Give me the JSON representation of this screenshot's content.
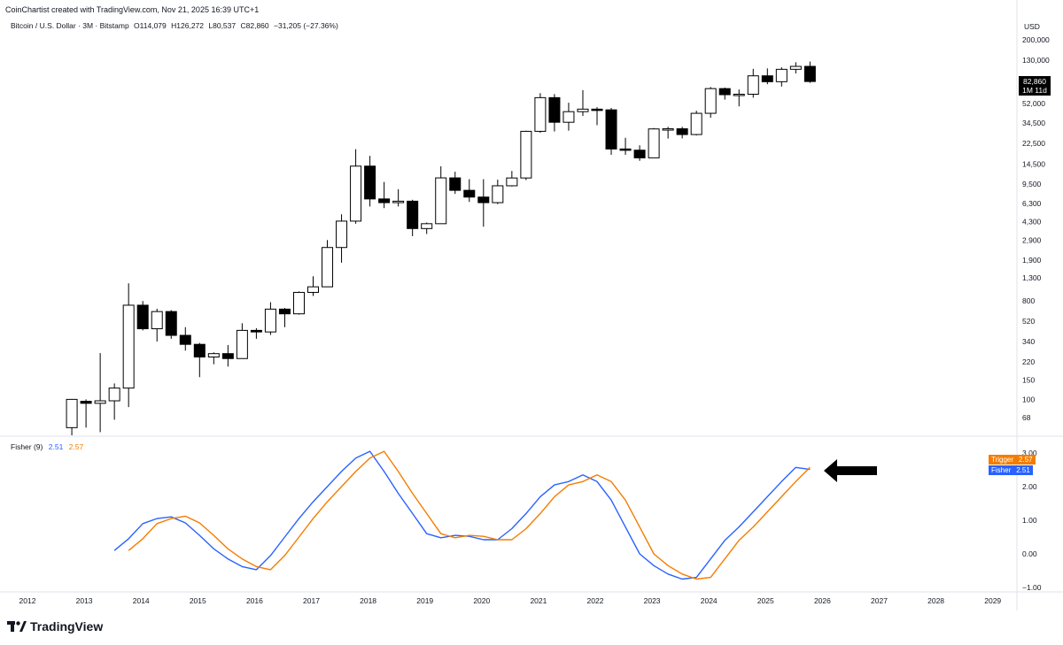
{
  "watermark": "CoinChartist created with TradingView.com, Nov 21, 2025 16:39 UTC+1",
  "legend": {
    "symbol": "Bitcoin / U.S. Dollar · 3M · Bitstamp",
    "open": "O114,079",
    "high": "H126,272",
    "low": "L80,537",
    "close": "C82,860",
    "change": "−31,205 (−27.36%)"
  },
  "currency": "USD",
  "price_tag": {
    "price": "82,860",
    "countdown": "1M 11d"
  },
  "fisher_legend": {
    "name": "Fisher (9)",
    "fisher_value": "2.51",
    "trigger_value": "2.57"
  },
  "indicator_tags": {
    "trigger_label": "Trigger",
    "trigger_value": "2.57",
    "fisher_label": "Fisher",
    "fisher_value": "2.51"
  },
  "brand": "TradingView",
  "colors": {
    "fisher": "#2962ff",
    "trigger": "#f57c00",
    "bearish": "#000000",
    "bullish": "#ffffff"
  },
  "chart_data": [
    {
      "type": "candlestick",
      "scale": "log",
      "price_axis_ticks": [
        "200,000",
        "130,000",
        "52,000",
        "34,500",
        "22,500",
        "14,500",
        "9,500",
        "6,300",
        "4,300",
        "2,900",
        "1,900",
        "1,300",
        "800",
        "520",
        "340",
        "220",
        "150",
        "100",
        "68"
      ],
      "price_axis_values": [
        200000,
        130000,
        52000,
        34500,
        22500,
        14500,
        9500,
        6300,
        4300,
        2900,
        1900,
        1300,
        800,
        520,
        340,
        220,
        150,
        100,
        68
      ],
      "time_axis_ticks": [
        "2012",
        "2013",
        "2014",
        "2015",
        "2016",
        "2017",
        "2018",
        "2019",
        "2020",
        "2021",
        "2022",
        "2023",
        "2024",
        "2025",
        "2026",
        "2027",
        "2028",
        "2029"
      ],
      "candles": [
        {
          "t": 2012.75,
          "o": 55,
          "h": 100,
          "l": 40,
          "c": 100
        },
        {
          "t": 2013.0,
          "o": 96,
          "h": 100,
          "l": 55,
          "c": 92
        },
        {
          "t": 2013.25,
          "o": 92,
          "h": 266,
          "l": 50,
          "c": 97
        },
        {
          "t": 2013.5,
          "o": 97,
          "h": 140,
          "l": 65,
          "c": 127
        },
        {
          "t": 2013.75,
          "o": 127,
          "h": 1163,
          "l": 85,
          "c": 732
        },
        {
          "t": 2014.0,
          "o": 732,
          "h": 800,
          "l": 430,
          "c": 445
        },
        {
          "t": 2014.25,
          "o": 445,
          "h": 680,
          "l": 340,
          "c": 640
        },
        {
          "t": 2014.5,
          "o": 640,
          "h": 660,
          "l": 360,
          "c": 387
        },
        {
          "t": 2014.75,
          "o": 387,
          "h": 460,
          "l": 280,
          "c": 320
        },
        {
          "t": 2015.0,
          "o": 320,
          "h": 330,
          "l": 160,
          "c": 245
        },
        {
          "t": 2015.25,
          "o": 245,
          "h": 270,
          "l": 210,
          "c": 263
        },
        {
          "t": 2015.5,
          "o": 263,
          "h": 315,
          "l": 200,
          "c": 237
        },
        {
          "t": 2015.75,
          "o": 237,
          "h": 500,
          "l": 237,
          "c": 430
        },
        {
          "t": 2016.0,
          "o": 430,
          "h": 450,
          "l": 360,
          "c": 416
        },
        {
          "t": 2016.25,
          "o": 416,
          "h": 780,
          "l": 390,
          "c": 674
        },
        {
          "t": 2016.5,
          "o": 674,
          "h": 690,
          "l": 460,
          "c": 610
        },
        {
          "t": 2016.75,
          "o": 610,
          "h": 980,
          "l": 600,
          "c": 960
        },
        {
          "t": 2017.0,
          "o": 960,
          "h": 1350,
          "l": 890,
          "c": 1080
        },
        {
          "t": 2017.25,
          "o": 1080,
          "h": 2900,
          "l": 1080,
          "c": 2480
        },
        {
          "t": 2017.5,
          "o": 2480,
          "h": 5000,
          "l": 1800,
          "c": 4330
        },
        {
          "t": 2017.75,
          "o": 4330,
          "h": 19800,
          "l": 4100,
          "c": 13850
        },
        {
          "t": 2018.0,
          "o": 13850,
          "h": 17200,
          "l": 5900,
          "c": 6920
        },
        {
          "t": 2018.25,
          "o": 6920,
          "h": 9900,
          "l": 5700,
          "c": 6400
        },
        {
          "t": 2018.5,
          "o": 6400,
          "h": 8500,
          "l": 5900,
          "c": 6600
        },
        {
          "t": 2018.75,
          "o": 6600,
          "h": 6800,
          "l": 3150,
          "c": 3700
        },
        {
          "t": 2019.0,
          "o": 3700,
          "h": 4200,
          "l": 3300,
          "c": 4100
        },
        {
          "t": 2019.25,
          "o": 4100,
          "h": 13800,
          "l": 4100,
          "c": 10800
        },
        {
          "t": 2019.5,
          "o": 10800,
          "h": 12300,
          "l": 7700,
          "c": 8300
        },
        {
          "t": 2019.75,
          "o": 8300,
          "h": 10500,
          "l": 6500,
          "c": 7200
        },
        {
          "t": 2020.0,
          "o": 7200,
          "h": 10500,
          "l": 3850,
          "c": 6400
        },
        {
          "t": 2020.25,
          "o": 6400,
          "h": 10400,
          "l": 6200,
          "c": 9140
        },
        {
          "t": 2020.5,
          "o": 9140,
          "h": 12500,
          "l": 9000,
          "c": 10780
        },
        {
          "t": 2020.75,
          "o": 10780,
          "h": 29300,
          "l": 10300,
          "c": 28900
        },
        {
          "t": 2021.0,
          "o": 28900,
          "h": 64800,
          "l": 28000,
          "c": 58900
        },
        {
          "t": 2021.25,
          "o": 58900,
          "h": 63500,
          "l": 28800,
          "c": 35000
        },
        {
          "t": 2021.5,
          "o": 35000,
          "h": 52900,
          "l": 29300,
          "c": 43800
        },
        {
          "t": 2021.75,
          "o": 43800,
          "h": 69000,
          "l": 40000,
          "c": 46200
        },
        {
          "t": 2022.0,
          "o": 46200,
          "h": 48200,
          "l": 32900,
          "c": 45500
        },
        {
          "t": 2022.25,
          "o": 45500,
          "h": 47400,
          "l": 17600,
          "c": 19900
        },
        {
          "t": 2022.5,
          "o": 19900,
          "h": 25200,
          "l": 17600,
          "c": 19400
        },
        {
          "t": 2022.75,
          "o": 19400,
          "h": 21500,
          "l": 15500,
          "c": 16500
        },
        {
          "t": 2023.0,
          "o": 16500,
          "h": 31000,
          "l": 16500,
          "c": 30400
        },
        {
          "t": 2023.25,
          "o": 30400,
          "h": 31800,
          "l": 24800,
          "c": 30500
        },
        {
          "t": 2023.5,
          "o": 30500,
          "h": 31800,
          "l": 24900,
          "c": 27000
        },
        {
          "t": 2023.75,
          "o": 27000,
          "h": 44700,
          "l": 26500,
          "c": 42300
        },
        {
          "t": 2024.0,
          "o": 42300,
          "h": 73800,
          "l": 38500,
          "c": 71300
        },
        {
          "t": 2024.25,
          "o": 71300,
          "h": 72800,
          "l": 56500,
          "c": 62700
        },
        {
          "t": 2024.5,
          "o": 62700,
          "h": 70000,
          "l": 49000,
          "c": 63300
        },
        {
          "t": 2024.75,
          "o": 63300,
          "h": 108300,
          "l": 58900,
          "c": 93400
        },
        {
          "t": 2025.0,
          "o": 93400,
          "h": 109300,
          "l": 78200,
          "c": 82500
        },
        {
          "t": 2025.25,
          "o": 82500,
          "h": 111900,
          "l": 74500,
          "c": 107200
        },
        {
          "t": 2025.5,
          "o": 107200,
          "h": 124500,
          "l": 98200,
          "c": 114079
        },
        {
          "t": 2025.75,
          "o": 114079,
          "h": 126272,
          "l": 80537,
          "c": 82860
        }
      ]
    },
    {
      "type": "line",
      "title": "Fisher (9)",
      "ylim": [
        -1.0,
        3.0
      ],
      "y_axis_ticks": [
        "3.00",
        "2.00",
        "1.00",
        "0.00",
        "−1.00"
      ],
      "y_axis_values": [
        3.0,
        2.0,
        1.0,
        0.0,
        -1.0
      ],
      "series": [
        {
          "name": "Fisher",
          "color": "#2962ff",
          "x": [
            2013.5,
            2013.75,
            2014.0,
            2014.25,
            2014.5,
            2014.75,
            2015.0,
            2015.25,
            2015.5,
            2015.75,
            2016.0,
            2016.25,
            2016.5,
            2016.75,
            2017.0,
            2017.25,
            2017.5,
            2017.75,
            2018.0,
            2018.25,
            2018.5,
            2018.75,
            2019.0,
            2019.25,
            2019.5,
            2019.75,
            2020.0,
            2020.25,
            2020.5,
            2020.75,
            2021.0,
            2021.25,
            2021.5,
            2021.75,
            2022.0,
            2022.25,
            2022.5,
            2022.75,
            2023.0,
            2023.25,
            2023.5,
            2023.75,
            2024.0,
            2024.25,
            2024.5,
            2024.75,
            2025.0,
            2025.25,
            2025.5,
            2025.75
          ],
          "values": [
            0.1,
            0.45,
            0.9,
            1.05,
            1.1,
            0.92,
            0.55,
            0.15,
            -0.15,
            -0.38,
            -0.47,
            -0.05,
            0.5,
            1.05,
            1.55,
            2.0,
            2.45,
            2.85,
            3.05,
            2.45,
            1.8,
            1.2,
            0.6,
            0.48,
            0.55,
            0.52,
            0.42,
            0.42,
            0.75,
            1.2,
            1.7,
            2.05,
            2.15,
            2.35,
            2.15,
            1.6,
            0.8,
            0.0,
            -0.35,
            -0.6,
            -0.75,
            -0.7,
            -0.15,
            0.4,
            0.8,
            1.25,
            1.7,
            2.15,
            2.57,
            2.51
          ]
        },
        {
          "name": "Trigger",
          "color": "#f57c00",
          "x": [
            2013.75,
            2014.0,
            2014.25,
            2014.5,
            2014.75,
            2015.0,
            2015.25,
            2015.5,
            2015.75,
            2016.0,
            2016.25,
            2016.5,
            2016.75,
            2017.0,
            2017.25,
            2017.5,
            2017.75,
            2018.0,
            2018.25,
            2018.5,
            2018.75,
            2019.0,
            2019.25,
            2019.5,
            2019.75,
            2020.0,
            2020.25,
            2020.5,
            2020.75,
            2021.0,
            2021.25,
            2021.5,
            2021.75,
            2022.0,
            2022.25,
            2022.5,
            2022.75,
            2023.0,
            2023.25,
            2023.5,
            2023.75,
            2024.0,
            2024.25,
            2024.5,
            2024.75,
            2025.0,
            2025.25,
            2025.5,
            2025.75
          ],
          "values": [
            0.1,
            0.45,
            0.9,
            1.05,
            1.12,
            0.92,
            0.55,
            0.15,
            -0.15,
            -0.38,
            -0.47,
            -0.05,
            0.5,
            1.05,
            1.55,
            2.0,
            2.45,
            2.85,
            3.05,
            2.45,
            1.8,
            1.2,
            0.6,
            0.48,
            0.55,
            0.52,
            0.42,
            0.42,
            0.75,
            1.2,
            1.7,
            2.05,
            2.15,
            2.35,
            2.15,
            1.6,
            0.8,
            0.0,
            -0.35,
            -0.6,
            -0.75,
            -0.7,
            -0.15,
            0.4,
            0.8,
            1.25,
            1.7,
            2.15,
            2.57
          ]
        }
      ]
    }
  ]
}
